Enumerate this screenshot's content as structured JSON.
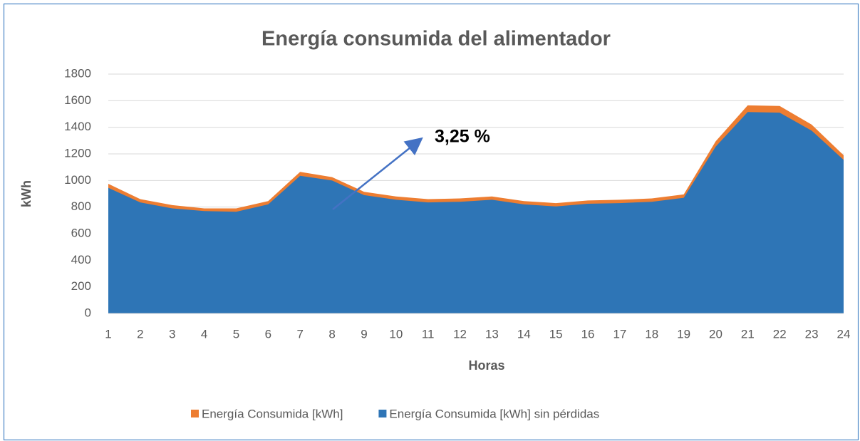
{
  "chart_data": {
    "type": "area",
    "title": "Energía consumida del alimentador",
    "x_label": "Horas",
    "y_label": "kWh",
    "annotation": "3,25 %",
    "x": [
      1,
      2,
      3,
      4,
      5,
      6,
      7,
      8,
      9,
      10,
      11,
      12,
      13,
      14,
      15,
      16,
      17,
      18,
      19,
      20,
      21,
      22,
      23,
      24
    ],
    "xlim": [
      1,
      24
    ],
    "ylim": [
      0,
      1800
    ],
    "yticks": [
      0,
      200,
      400,
      600,
      800,
      1000,
      1200,
      1400,
      1600,
      1800
    ],
    "grid": true,
    "legend": "bottom",
    "series": [
      {
        "name": "Energía Consumida [kWh]",
        "color": "#ed7d31",
        "values": [
          975,
          860,
          815,
          790,
          790,
          845,
          1065,
          1025,
          915,
          880,
          860,
          865,
          880,
          845,
          830,
          850,
          855,
          865,
          895,
          1295,
          1565,
          1560,
          1420,
          1190
        ]
      },
      {
        "name": "Energía Consumida [kWh] sin pérdidas",
        "color": "#2e75b6",
        "values": [
          945,
          835,
          790,
          770,
          765,
          820,
          1035,
          1000,
          890,
          855,
          835,
          840,
          855,
          820,
          805,
          825,
          830,
          840,
          870,
          1255,
          1515,
          1510,
          1375,
          1155
        ]
      }
    ]
  }
}
